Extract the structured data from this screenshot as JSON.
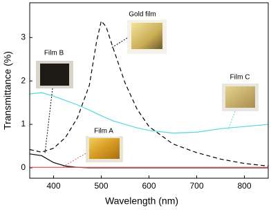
{
  "chart_data": {
    "type": "line",
    "x_label": "Wavelength (nm)",
    "y_label": "Transmittance (%)",
    "x": [
      350,
      375,
      400,
      425,
      450,
      475,
      490,
      500,
      510,
      525,
      550,
      575,
      600,
      650,
      700,
      750,
      800,
      850
    ],
    "series": [
      {
        "name": "Gold film",
        "color": "#000000",
        "dash": true,
        "values": [
          0.42,
          0.36,
          0.45,
          0.7,
          1.15,
          1.9,
          2.9,
          3.38,
          3.25,
          2.75,
          1.95,
          1.35,
          0.95,
          0.55,
          0.35,
          0.2,
          0.1,
          0.04
        ]
      },
      {
        "name": "Film B",
        "color": "#000000",
        "dash": false,
        "values": [
          0.32,
          0.28,
          0.12,
          0.04,
          0.01,
          0,
          0,
          0,
          0,
          0,
          0,
          0,
          0,
          0,
          0,
          0,
          0,
          0
        ]
      },
      {
        "name": "Film C",
        "color": "#4fd8e0",
        "dash": false,
        "values": [
          1.7,
          1.73,
          1.65,
          1.55,
          1.45,
          1.33,
          1.25,
          1.2,
          1.15,
          1.08,
          1.0,
          0.92,
          0.86,
          0.8,
          0.82,
          0.9,
          0.95,
          1.0
        ]
      },
      {
        "name": "Film A",
        "color": "#e8505a",
        "dash": false,
        "values": [
          0.01,
          0.01,
          0.01,
          0.01,
          0.01,
          0.01,
          0.01,
          0.01,
          0.01,
          0.01,
          0.01,
          0.01,
          0.01,
          0.01,
          0.01,
          0.01,
          0.01,
          0.01
        ]
      }
    ],
    "xlim": [
      350,
      850
    ],
    "xticks": [
      400,
      500,
      600,
      700,
      800
    ],
    "ylim": [
      -0.24,
      3.8
    ],
    "yticks": [
      0,
      1,
      2,
      3
    ]
  }
}
